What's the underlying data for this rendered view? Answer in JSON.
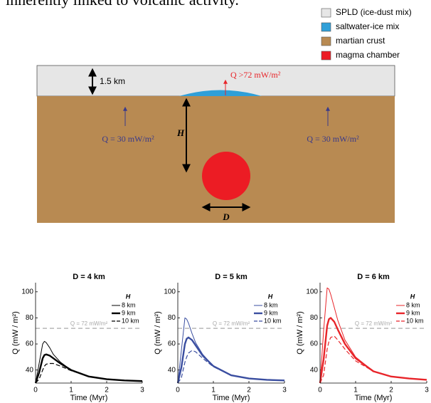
{
  "intro_text": "inherently linked to volcanic activity.",
  "diagram": {
    "legend": [
      {
        "label": "SPLD (ice-dust mix)",
        "color": "#e6e6e6"
      },
      {
        "label": "saltwater-ice mix",
        "color": "#2f9fd8"
      },
      {
        "label": "martian crust",
        "color": "#b88a52"
      },
      {
        "label": "magma chamber",
        "color": "#ec1c24"
      }
    ],
    "thickness_label": "1.5 km",
    "lens_flux_label": "Q >72 mW/m²",
    "depth_label": "H",
    "left_flux_label": "Q = 30 mW/m²",
    "right_flux_label": "Q = 30 mW/m²",
    "diameter_label": "D"
  },
  "chart_data": [
    {
      "type": "line",
      "title": "D = 4 km",
      "xlabel": "Time (Myr)",
      "ylabel": "Q (mW / m²)",
      "x": [
        0,
        0.1,
        0.2,
        0.25,
        0.3,
        0.4,
        0.5,
        0.7,
        1,
        1.5,
        2,
        2.5,
        3
      ],
      "xlim": [
        0,
        3
      ],
      "xticks": [
        0,
        1,
        2,
        3
      ],
      "ylim": [
        30,
        107
      ],
      "yticks": [
        40,
        60,
        80,
        100
      ],
      "legend_title": "H",
      "legend": "upper right",
      "reference": {
        "value": 72,
        "label": "Q = 72 mW/m²"
      },
      "series": [
        {
          "name": "8 km",
          "color": "#000000",
          "style": "thin",
          "values": [
            30,
            45,
            60,
            62,
            61,
            57,
            52,
            46,
            40,
            35,
            33,
            32,
            31.5
          ]
        },
        {
          "name": "9 km",
          "color": "#000000",
          "style": "thick",
          "values": [
            30,
            38,
            49,
            51.5,
            52,
            51,
            49,
            45,
            40,
            35,
            33,
            32,
            31.5
          ]
        },
        {
          "name": "10 km",
          "color": "#000000",
          "style": "dashed",
          "values": [
            30,
            33,
            40,
            43,
            44.5,
            45,
            45,
            43,
            39.5,
            35,
            33,
            32,
            31.5
          ]
        }
      ]
    },
    {
      "type": "line",
      "title": "D = 5 km",
      "xlabel": "Time (Myr)",
      "ylabel": "Q (mW / m²)",
      "x": [
        0,
        0.1,
        0.2,
        0.25,
        0.3,
        0.4,
        0.5,
        0.7,
        1,
        1.5,
        2,
        2.5,
        3
      ],
      "xlim": [
        0,
        3
      ],
      "xticks": [
        0,
        1,
        2,
        3
      ],
      "ylim": [
        30,
        107
      ],
      "yticks": [
        40,
        60,
        80,
        100
      ],
      "legend_title": "H",
      "legend": "upper right",
      "reference": {
        "value": 72,
        "label": "Q = 72 mW/m²"
      },
      "series": [
        {
          "name": "8 km",
          "color": "#3a4ea0",
          "style": "thin",
          "values": [
            30,
            55,
            80,
            79,
            76,
            68,
            61,
            52,
            43,
            36,
            33.5,
            32.5,
            32
          ]
        },
        {
          "name": "9 km",
          "color": "#3a4ea0",
          "style": "thick",
          "values": [
            30,
            42,
            60,
            64,
            65,
            63,
            59,
            51,
            43,
            36,
            33.5,
            32.5,
            32
          ]
        },
        {
          "name": "10 km",
          "color": "#3a4ea0",
          "style": "dashed",
          "values": [
            30,
            34,
            46,
            50,
            53,
            55,
            54,
            49,
            42.5,
            36,
            33.5,
            32.5,
            32
          ]
        }
      ]
    },
    {
      "type": "line",
      "title": "D = 6 km",
      "xlabel": "Time (Myr)",
      "ylabel": "Q (mW / m²)",
      "x": [
        0,
        0.1,
        0.2,
        0.25,
        0.3,
        0.4,
        0.5,
        0.7,
        1,
        1.5,
        2,
        2.5,
        3
      ],
      "xlim": [
        0,
        3
      ],
      "xticks": [
        0,
        1,
        2,
        3
      ],
      "ylim": [
        30,
        107
      ],
      "yticks": [
        40,
        60,
        80,
        100
      ],
      "legend_title": "H",
      "legend": "upper right",
      "reference": {
        "value": 72,
        "label": "Q = 72 mW/m²"
      },
      "series": [
        {
          "name": "8 km",
          "color": "#e8252a",
          "style": "thin",
          "values": [
            30,
            70,
            103,
            102,
            98,
            88,
            78,
            63,
            50,
            39,
            35,
            33.5,
            32.5
          ]
        },
        {
          "name": "9 km",
          "color": "#e8252a",
          "style": "thick",
          "values": [
            30,
            48,
            74,
            79,
            80,
            77,
            71,
            60,
            49,
            39,
            35,
            33.5,
            32.5
          ]
        },
        {
          "name": "10 km",
          "color": "#e8252a",
          "style": "dashed",
          "values": [
            30,
            36,
            56,
            62,
            65,
            66,
            63,
            56,
            47,
            39,
            35,
            33.5,
            32.5
          ]
        }
      ]
    }
  ]
}
